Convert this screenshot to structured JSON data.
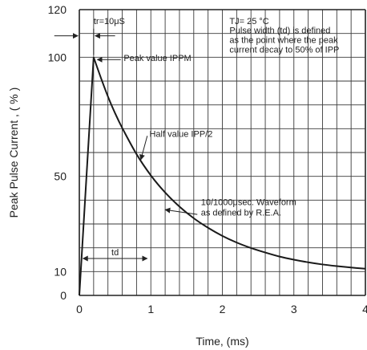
{
  "chart_data": {
    "type": "line",
    "xlabel": "Time, (ms)",
    "ylabel": "Peak Pulse Current , ( % )",
    "xlim": [
      0,
      4
    ],
    "ylim": [
      0,
      120
    ],
    "x_ticks": [
      "0",
      "1",
      "2",
      "3",
      "4"
    ],
    "y_ticks": [
      {
        "value": 0,
        "label": "0"
      },
      {
        "value": 10,
        "label": "10"
      },
      {
        "value": 50,
        "label": "50"
      },
      {
        "value": 100,
        "label": "100"
      },
      {
        "value": 120,
        "label": "120"
      }
    ],
    "grid": true,
    "series": [
      {
        "x": [
          0,
          0.2,
          0.3,
          0.4,
          0.5,
          0.6,
          0.8,
          1.0,
          1.2,
          1.4,
          1.6,
          1.8,
          2.0,
          2.2,
          2.4,
          2.6,
          2.8,
          3.0,
          3.2,
          3.4,
          3.6,
          3.8,
          4.0
        ],
        "y": [
          0,
          100,
          91.5,
          83.5,
          76.5,
          70.3,
          59.3,
          50.4,
          43.2,
          37.3,
          32.4,
          28.4,
          25.0,
          22.2,
          19.9,
          18.0,
          16.3,
          15.0,
          13.9,
          13.0,
          12.3,
          11.7,
          11.2
        ]
      }
    ],
    "annotations": {
      "tr_label": "tr=10μS",
      "peak_label": "Peak value IPPM",
      "half_label": "Half value IPP/2",
      "td_label": "td",
      "tj_label": "TJ= 25 °C",
      "def_line1": "Pulse width (td) is defined",
      "def_line2": "as the point where the peak",
      "def_line3": "current decay to 50% of IPP",
      "wave_line1": "10/1000μsec. Waveform",
      "wave_line2": "as defined by R.E.A."
    }
  }
}
